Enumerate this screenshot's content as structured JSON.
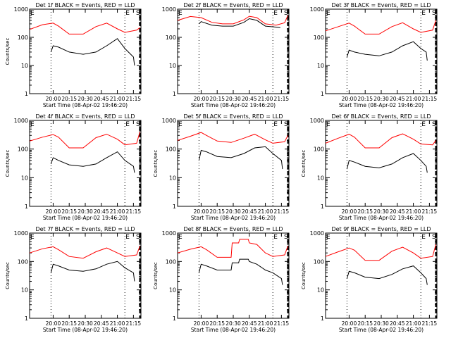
{
  "figure": {
    "background": "#ffffff"
  },
  "chart_data": [
    {
      "type": "line",
      "title": "Det 1f BLACK = Events, RED = LLD",
      "xlabel": "",
      "ylabel": "Counts/sec",
      "yscale": "log",
      "ylim": [
        1,
        1000
      ],
      "yticks": [
        "1",
        "10",
        "100",
        "1000"
      ],
      "xticks": [
        "20:00",
        "20:15",
        "20:30",
        "20:45",
        "21:00",
        "21:15"
      ],
      "markers": [
        "E",
        "E",
        "S"
      ],
      "vlines": [
        "19:58",
        "21:07",
        "21:21"
      ],
      "grid": false,
      "series": [
        {
          "name": "RED = LLD",
          "color": "#ff0000",
          "x": [
            "19:38",
            "19:50",
            "20:00",
            "20:05",
            "20:15",
            "20:28",
            "20:40",
            "20:50",
            "21:00",
            "21:07",
            "21:18",
            "21:21"
          ],
          "values": [
            190,
            280,
            320,
            250,
            130,
            130,
            240,
            320,
            200,
            150,
            180,
            220
          ]
        },
        {
          "name": "BLACK = Events",
          "color": "#000000",
          "x": [
            "19:58",
            "20:00",
            "20:05",
            "20:15",
            "20:28",
            "20:40",
            "20:50",
            "21:00",
            "21:07",
            "21:15",
            "21:16"
          ],
          "values": [
            30,
            50,
            45,
            30,
            25,
            30,
            50,
            90,
            40,
            20,
            10
          ]
        }
      ]
    },
    {
      "type": "line",
      "title": "Det 2f BLACK = Events, RED = LLD",
      "xlabel": "",
      "ylabel": "",
      "yscale": "log",
      "ylim": [
        1,
        1000
      ],
      "yticks": [
        "1",
        "10",
        "100",
        "1000"
      ],
      "xticks": [
        "20:00",
        "20:15",
        "20:30",
        "20:45",
        "21:00",
        "21:15"
      ],
      "markers": [
        "E",
        "E",
        "S"
      ],
      "vlines": [
        "19:58",
        "21:07",
        "21:21"
      ],
      "grid": false,
      "series": [
        {
          "name": "RED = LLD",
          "color": "#ff0000",
          "x": [
            "19:38",
            "19:50",
            "20:00",
            "20:10",
            "20:20",
            "20:30",
            "20:40",
            "20:45",
            "20:52",
            "21:00",
            "21:10",
            "21:18",
            "21:21"
          ],
          "values": [
            400,
            550,
            500,
            340,
            300,
            300,
            420,
            560,
            500,
            300,
            270,
            330,
            600
          ]
        },
        {
          "name": "BLACK = Events",
          "color": "#000000",
          "x": [
            "19:58",
            "20:00",
            "20:10",
            "20:20",
            "20:30",
            "20:40",
            "20:45",
            "20:52",
            "21:00",
            "21:10",
            "21:14"
          ],
          "values": [
            300,
            360,
            270,
            250,
            250,
            340,
            460,
            400,
            250,
            230,
            220
          ]
        }
      ]
    },
    {
      "type": "line",
      "title": "Det 3f BLACK = Events, RED = LLD",
      "xlabel": "",
      "ylabel": "",
      "yscale": "log",
      "ylim": [
        1,
        1000
      ],
      "yticks": [
        "1",
        "10",
        "100",
        "1000"
      ],
      "xticks": [
        "20:00",
        "20:15",
        "20:30",
        "20:45",
        "21:00",
        "21:15"
      ],
      "markers": [
        "E",
        "E",
        "S"
      ],
      "vlines": [
        "19:58",
        "21:07",
        "21:21"
      ],
      "grid": false,
      "series": [
        {
          "name": "RED = LLD",
          "color": "#ff0000",
          "x": [
            "19:38",
            "19:50",
            "20:00",
            "20:05",
            "20:15",
            "20:28",
            "20:40",
            "20:50",
            "21:00",
            "21:07",
            "21:18",
            "21:21"
          ],
          "values": [
            170,
            240,
            320,
            250,
            130,
            130,
            240,
            330,
            200,
            150,
            180,
            400
          ]
        },
        {
          "name": "BLACK = Events",
          "color": "#000000",
          "x": [
            "19:58",
            "20:00",
            "20:05",
            "20:15",
            "20:28",
            "20:40",
            "20:50",
            "21:00",
            "21:07",
            "21:12",
            "21:13"
          ],
          "values": [
            20,
            35,
            30,
            25,
            22,
            30,
            50,
            70,
            40,
            30,
            15
          ]
        }
      ]
    },
    {
      "type": "line",
      "title": "Det 4f BLACK = Events, RED = LLD",
      "xlabel": "",
      "ylabel": "Counts/sec",
      "yscale": "log",
      "ylim": [
        1,
        1000
      ],
      "yticks": [
        "1",
        "10",
        "100",
        "1000"
      ],
      "xticks": [
        "20:00",
        "20:15",
        "20:30",
        "20:45",
        "21:00",
        "21:15"
      ],
      "markers": [
        "E",
        "E",
        "S"
      ],
      "vlines": [
        "19:58",
        "21:07",
        "21:21"
      ],
      "grid": false,
      "series": [
        {
          "name": "RED = LLD",
          "color": "#ff0000",
          "x": [
            "19:38",
            "19:50",
            "20:00",
            "20:05",
            "20:15",
            "20:28",
            "20:40",
            "20:50",
            "21:00",
            "21:07",
            "21:18",
            "21:21"
          ],
          "values": [
            190,
            260,
            320,
            260,
            110,
            110,
            250,
            330,
            220,
            140,
            160,
            400
          ]
        },
        {
          "name": "BLACK = Events",
          "color": "#000000",
          "x": [
            "19:58",
            "20:00",
            "20:05",
            "20:15",
            "20:28",
            "20:40",
            "20:50",
            "21:00",
            "21:07",
            "21:15",
            "21:16"
          ],
          "values": [
            30,
            50,
            40,
            28,
            25,
            30,
            50,
            80,
            40,
            25,
            15
          ]
        }
      ]
    },
    {
      "type": "line",
      "title": "Det 5f BLACK = Events, RED = LLD",
      "xlabel": "",
      "ylabel": "Counts/sec",
      "yscale": "log",
      "ylim": [
        1,
        1000
      ],
      "yticks": [
        "1",
        "10",
        "100",
        "1000"
      ],
      "xticks": [
        "20:00",
        "20:15",
        "20:30",
        "20:45",
        "21:00",
        "21:15"
      ],
      "markers": [
        "E",
        "E",
        "S"
      ],
      "vlines": [
        "19:58",
        "21:07",
        "21:21"
      ],
      "grid": false,
      "series": [
        {
          "name": "RED = LLD",
          "color": "#ff0000",
          "x": [
            "19:38",
            "19:50",
            "20:00",
            "20:05",
            "20:15",
            "20:28",
            "20:40",
            "20:50",
            "21:00",
            "21:07",
            "21:18",
            "21:21"
          ],
          "values": [
            200,
            280,
            380,
            300,
            190,
            170,
            240,
            330,
            210,
            160,
            180,
            300
          ]
        },
        {
          "name": "BLACK = Events",
          "color": "#000000",
          "x": [
            "19:58",
            "20:00",
            "20:05",
            "20:15",
            "20:28",
            "20:40",
            "20:50",
            "21:00",
            "21:07",
            "21:15",
            "21:16"
          ],
          "values": [
            40,
            90,
            80,
            55,
            50,
            70,
            110,
            120,
            70,
            40,
            20
          ]
        }
      ]
    },
    {
      "type": "line",
      "title": "Det 6f BLACK = Events, RED = LLD",
      "xlabel": "",
      "ylabel": "Counts/sec",
      "yscale": "log",
      "ylim": [
        1,
        1000
      ],
      "yticks": [
        "1",
        "10",
        "100",
        "1000"
      ],
      "xticks": [
        "20:00",
        "20:15",
        "20:30",
        "20:45",
        "21:00",
        "21:15"
      ],
      "markers": [
        "E",
        "E",
        "S"
      ],
      "vlines": [
        "19:58",
        "21:07",
        "21:21"
      ],
      "grid": false,
      "series": [
        {
          "name": "RED = LLD",
          "color": "#ff0000",
          "x": [
            "19:38",
            "19:50",
            "20:00",
            "20:05",
            "20:15",
            "20:28",
            "20:40",
            "20:50",
            "21:00",
            "21:07",
            "21:18",
            "21:21"
          ],
          "values": [
            160,
            240,
            330,
            260,
            110,
            110,
            250,
            340,
            220,
            150,
            140,
            200
          ]
        },
        {
          "name": "BLACK = Events",
          "color": "#000000",
          "x": [
            "19:58",
            "20:00",
            "20:05",
            "20:15",
            "20:28",
            "20:40",
            "20:50",
            "21:00",
            "21:07",
            "21:12",
            "21:13"
          ],
          "values": [
            20,
            40,
            35,
            25,
            22,
            30,
            50,
            70,
            40,
            25,
            15
          ]
        }
      ]
    },
    {
      "type": "line",
      "title": "Det 7f BLACK = Events, RED = LLD",
      "xlabel": "",
      "ylabel": "Counts/sec",
      "yscale": "log",
      "ylim": [
        1,
        1000
      ],
      "yticks": [
        "1",
        "10",
        "100",
        "1000"
      ],
      "xticks": [
        "20:00",
        "20:15",
        "20:30",
        "20:45",
        "21:00",
        "21:15"
      ],
      "markers": [
        "E",
        "E",
        "S"
      ],
      "vlines": [
        "19:58",
        "21:07",
        "21:21"
      ],
      "grid": false,
      "series": [
        {
          "name": "RED = LLD",
          "color": "#ff0000",
          "x": [
            "19:38",
            "19:50",
            "20:00",
            "20:05",
            "20:15",
            "20:28",
            "20:40",
            "20:50",
            "21:00",
            "21:07",
            "21:18",
            "21:21"
          ],
          "values": [
            200,
            280,
            330,
            260,
            150,
            130,
            220,
            300,
            200,
            150,
            170,
            350
          ]
        },
        {
          "name": "BLACK = Events",
          "color": "#000000",
          "x": [
            "19:58",
            "20:00",
            "20:05",
            "20:15",
            "20:28",
            "20:40",
            "20:50",
            "21:00",
            "21:07",
            "21:15",
            "21:16"
          ],
          "values": [
            40,
            80,
            70,
            50,
            45,
            55,
            80,
            100,
            60,
            40,
            20
          ]
        }
      ]
    },
    {
      "type": "line",
      "title": "Det 8f BLACK = Events, RED = LLD",
      "xlabel": "",
      "ylabel": "Counts/sec",
      "yscale": "log",
      "ylim": [
        1,
        1000
      ],
      "yticks": [
        "1",
        "10",
        "100",
        "1000"
      ],
      "xticks": [
        "20:00",
        "20:15",
        "20:30",
        "20:45",
        "21:00",
        "21:15"
      ],
      "markers": [
        "E",
        "E",
        "S"
      ],
      "vlines": [
        "19:58",
        "21:07",
        "21:21"
      ],
      "grid": false,
      "series": [
        {
          "name": "RED = LLD",
          "color": "#ff0000",
          "x": [
            "19:38",
            "19:50",
            "20:00",
            "20:05",
            "20:15",
            "20:28",
            "20:29",
            "20:35",
            "20:36",
            "20:44",
            "20:45",
            "20:52",
            "21:00",
            "21:07",
            "21:18",
            "21:21"
          ],
          "values": [
            200,
            270,
            330,
            260,
            140,
            140,
            450,
            450,
            600,
            600,
            450,
            400,
            200,
            150,
            170,
            350
          ]
        },
        {
          "name": "BLACK = Events",
          "color": "#000000",
          "x": [
            "19:58",
            "20:00",
            "20:05",
            "20:15",
            "20:28",
            "20:29",
            "20:35",
            "20:36",
            "20:44",
            "20:45",
            "20:52",
            "21:00",
            "21:07",
            "21:15",
            "21:16"
          ],
          "values": [
            40,
            80,
            70,
            50,
            50,
            90,
            90,
            120,
            120,
            100,
            80,
            50,
            40,
            25,
            15
          ]
        }
      ]
    },
    {
      "type": "line",
      "title": "Det 9f BLACK = Events, RED = LLD",
      "xlabel": "",
      "ylabel": "Counts/sec",
      "yscale": "log",
      "ylim": [
        1,
        1000
      ],
      "yticks": [
        "1",
        "10",
        "100",
        "1000"
      ],
      "xticks": [
        "20:00",
        "20:15",
        "20:30",
        "20:45",
        "21:00",
        "21:15"
      ],
      "markers": [
        "E",
        "E",
        "S"
      ],
      "vlines": [
        "19:58",
        "21:07",
        "21:21"
      ],
      "grid": false,
      "series": [
        {
          "name": "RED = LLD",
          "color": "#ff0000",
          "x": [
            "19:38",
            "19:50",
            "20:00",
            "20:05",
            "20:15",
            "20:28",
            "20:40",
            "20:50",
            "21:00",
            "21:07",
            "21:18",
            "21:21"
          ],
          "values": [
            150,
            220,
            300,
            250,
            110,
            110,
            230,
            320,
            200,
            130,
            150,
            400
          ]
        },
        {
          "name": "BLACK = Events",
          "color": "#000000",
          "x": [
            "19:58",
            "20:00",
            "20:05",
            "20:15",
            "20:28",
            "20:40",
            "20:50",
            "21:00",
            "21:07",
            "21:12",
            "21:13"
          ],
          "values": [
            25,
            45,
            40,
            28,
            25,
            35,
            55,
            70,
            40,
            25,
            15
          ]
        }
      ]
    }
  ],
  "bottom_labels": {
    "col1": "Start Time (08-Apr-02 19:46:20)",
    "col2": "Start Time (08-Apr-02 19:46:20)",
    "col3": "Start Time (08-Apr-02 19:46:20)"
  }
}
